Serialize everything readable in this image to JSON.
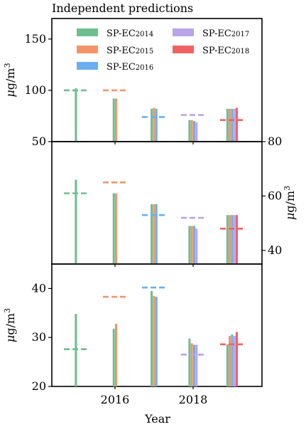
{
  "chart_data": {
    "type": "bar",
    "title": "Independent predictions",
    "xlabel": "Year",
    "x_ticks": [
      2016,
      2018
    ],
    "legend": {
      "placement": "top",
      "entries": [
        {
          "prefix": "SP-EC",
          "sub": "2014",
          "color": "#6dbf8f"
        },
        {
          "prefix": "SP-EC",
          "sub": "2015",
          "color": "#f5946a"
        },
        {
          "prefix": "SP-EC",
          "sub": "2016",
          "color": "#6aaef0"
        },
        {
          "prefix": "SP-EC",
          "sub": "2017",
          "color": "#b9a4e8"
        },
        {
          "prefix": "SP-EC",
          "sub": "2018",
          "color": "#f06262"
        }
      ]
    },
    "groups": [
      2015,
      2016,
      2017,
      2018,
      2019
    ],
    "panels": [
      {
        "ylabel_main": "μg/m",
        "ylabel_sup": "3",
        "axis_side": "left",
        "ylim": [
          50,
          170
        ],
        "ticks": [
          50,
          100,
          150
        ],
        "bars": [
          [
            102
          ],
          [
            92,
            92
          ],
          [
            82,
            83,
            82
          ],
          [
            71,
            71,
            70,
            69
          ],
          [
            82,
            82,
            82,
            82,
            83
          ]
        ],
        "refs": [
          100,
          100,
          74,
          76,
          71
        ]
      },
      {
        "ylabel_main": "μg/m",
        "ylabel_sup": "3",
        "axis_side": "right",
        "ylim": [
          35,
          80
        ],
        "ticks": [
          40,
          60,
          80
        ],
        "bars": [
          [
            66
          ],
          [
            61,
            61
          ],
          [
            57,
            57,
            57
          ],
          [
            49,
            49,
            49,
            48
          ],
          [
            53,
            53,
            53,
            53,
            53
          ]
        ],
        "refs": [
          61,
          65,
          53,
          52,
          48
        ]
      },
      {
        "ylabel_main": "μg/m",
        "ylabel_sup": "3",
        "axis_side": "left",
        "ylim": [
          20,
          45
        ],
        "ticks": [
          20,
          30,
          40
        ],
        "bars": [
          [
            34.8
          ],
          [
            31.8,
            32.8
          ],
          [
            39.5,
            38.5,
            38.3
          ],
          [
            29.8,
            28.8,
            28.5,
            28.5
          ],
          [
            28.6,
            30.3,
            30.6,
            30.3,
            31.1
          ]
        ],
        "refs": [
          27.6,
          38.3,
          40.2,
          26.5,
          28.6
        ]
      }
    ]
  }
}
